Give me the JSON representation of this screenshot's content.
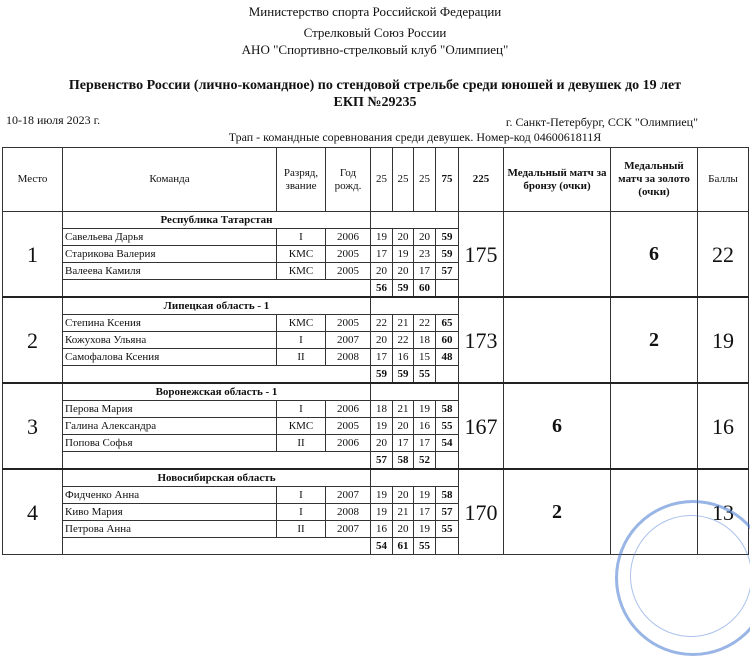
{
  "header": {
    "line1": "Министерство спорта Российской Федерации",
    "line2": "Стрелковый Союз России",
    "line3": "АНО \"Спортивно-стрелковый клуб \"Олимпиец\"",
    "title": "Первенство России (лично-командное) по стендовой стрельбе среди юношей и девушек до 19 лет",
    "ekp": "ЕКП №29235",
    "date": "10-18 июля 2023 г.",
    "place": "г. Санкт-Петербург, ССК \"Олимпиец\"",
    "event": "Трап - командные соревнования среди девушек. Номер-код 0460061811Я"
  },
  "columns": [
    "Место",
    "Команда",
    "Разряд, звание",
    "Год рожд.",
    "25",
    "25",
    "25",
    "75",
    "225",
    "Медальный матч за бронзу (очки)",
    "Медальный матч за золото (очки)",
    "Баллы"
  ],
  "teams": [
    {
      "place": "1",
      "name": "Республика Татарстан",
      "total": "175",
      "bronze": "",
      "gold": "6",
      "points": "22",
      "members": [
        [
          "Савельева Дарья",
          "I",
          "2006",
          "19",
          "20",
          "20",
          "59"
        ],
        [
          "Старикова Валерия",
          "КМС",
          "2005",
          "17",
          "19",
          "23",
          "59"
        ],
        [
          "Валеева Камиля",
          "КМС",
          "2005",
          "20",
          "20",
          "17",
          "57"
        ]
      ],
      "series": [
        "56",
        "59",
        "60"
      ]
    },
    {
      "place": "2",
      "name": "Липецкая область - 1",
      "total": "173",
      "bronze": "",
      "gold": "2",
      "points": "19",
      "members": [
        [
          "Степина Ксения",
          "КМС",
          "2005",
          "22",
          "21",
          "22",
          "65"
        ],
        [
          "Кожухова Ульяна",
          "I",
          "2007",
          "20",
          "22",
          "18",
          "60"
        ],
        [
          "Самофалова Ксения",
          "II",
          "2008",
          "17",
          "16",
          "15",
          "48"
        ]
      ],
      "series": [
        "59",
        "59",
        "55"
      ]
    },
    {
      "place": "3",
      "name": "Воронежская область - 1",
      "total": "167",
      "bronze": "6",
      "gold": "",
      "points": "16",
      "members": [
        [
          "Перова Мария",
          "I",
          "2006",
          "18",
          "21",
          "19",
          "58"
        ],
        [
          "Галина Александра",
          "КМС",
          "2005",
          "19",
          "20",
          "16",
          "55"
        ],
        [
          "Попова Софья",
          "II",
          "2006",
          "20",
          "17",
          "17",
          "54"
        ]
      ],
      "series": [
        "57",
        "58",
        "52"
      ]
    },
    {
      "place": "4",
      "name": "Новосибирская область",
      "total": "170",
      "bronze": "2",
      "gold": "",
      "points": "13",
      "members": [
        [
          "Фидченко Анна",
          "I",
          "2007",
          "19",
          "20",
          "19",
          "58"
        ],
        [
          "Киво Мария",
          "I",
          "2008",
          "19",
          "21",
          "17",
          "57"
        ],
        [
          "Петрова Анна",
          "II",
          "2007",
          "16",
          "20",
          "19",
          "55"
        ]
      ],
      "series": [
        "54",
        "61",
        "55"
      ]
    }
  ]
}
